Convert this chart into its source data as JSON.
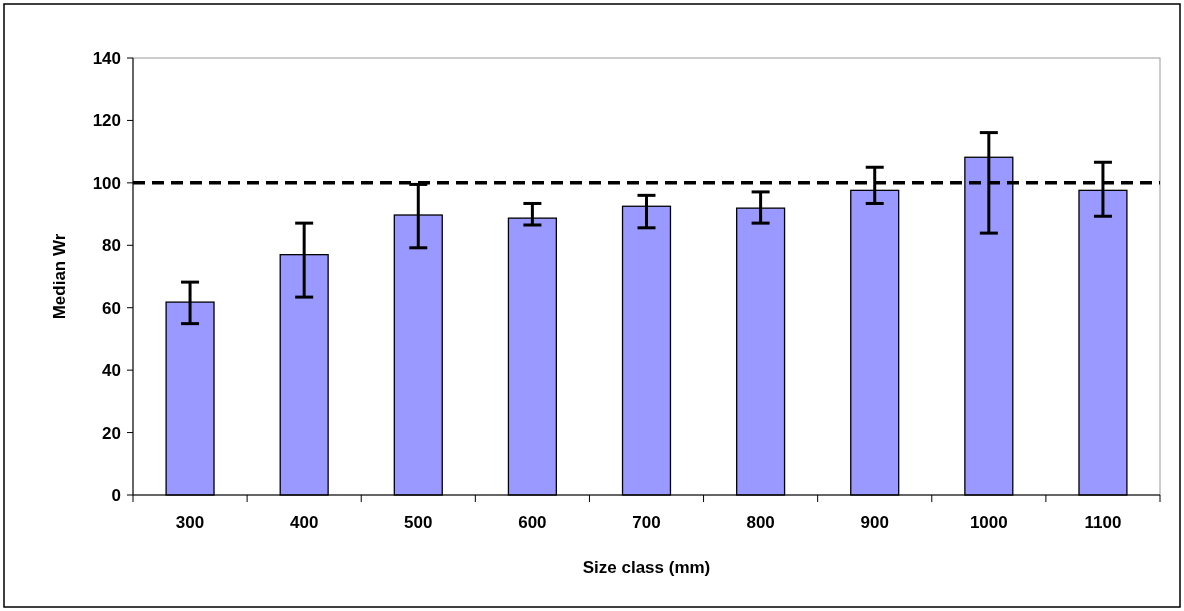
{
  "chart_data": {
    "type": "bar",
    "xlabel": "Size class (mm)",
    "ylabel": "Median Wr",
    "categories": [
      "300",
      "400",
      "500",
      "600",
      "700",
      "800",
      "900",
      "1000",
      "1100"
    ],
    "values": [
      61.8,
      77.0,
      89.7,
      88.7,
      92.5,
      91.9,
      97.6,
      108.2,
      97.6
    ],
    "errors": [
      [
        54.9,
        68.2
      ],
      [
        63.4,
        87.1
      ],
      [
        79.2,
        99.5
      ],
      [
        86.5,
        93.4
      ],
      [
        85.6,
        96.0
      ],
      [
        87.1,
        97.1
      ],
      [
        93.4,
        105.0
      ],
      [
        83.9,
        116.1
      ],
      [
        89.3,
        106.6
      ]
    ],
    "color": "#9999ff",
    "ylim": [
      0,
      140
    ],
    "yticks": [
      0,
      20,
      40,
      60,
      80,
      100,
      120,
      140
    ],
    "ref_lines": [
      {
        "axis": "y",
        "value": 100,
        "line_style": "dashed",
        "color": "#000000"
      }
    ],
    "grid": false
  }
}
